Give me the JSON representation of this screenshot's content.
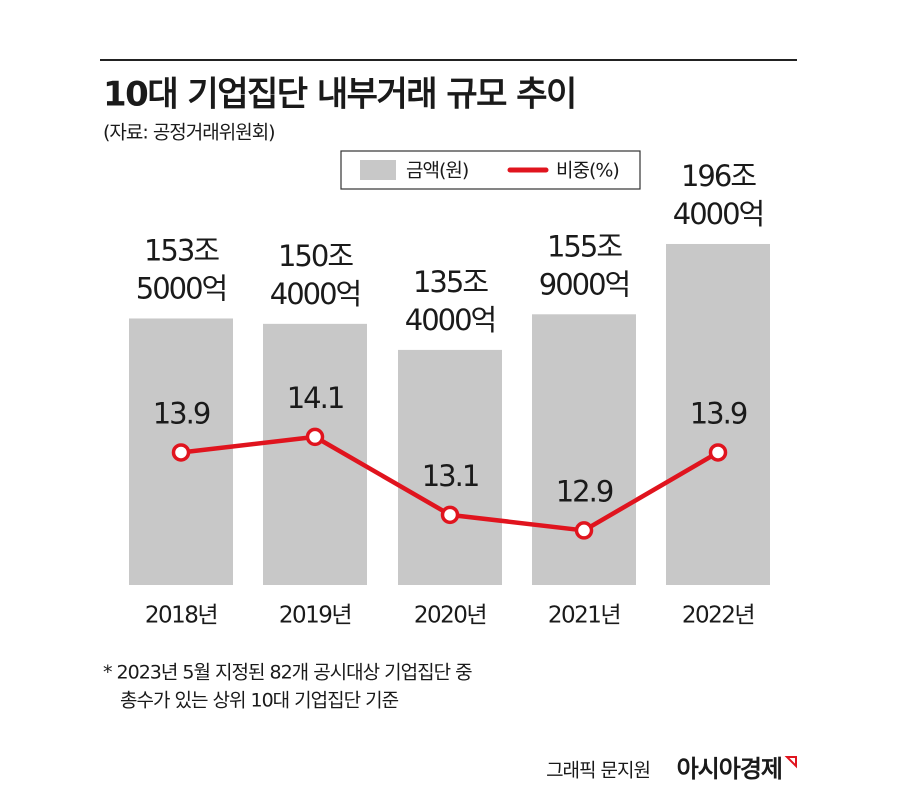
{
  "chart_data": {
    "type": "bar",
    "title": "10대 기업집단 내부거래 규모 추이",
    "subtitle": "(자료: 공정거래위원회)",
    "categories": [
      "2018년",
      "2019년",
      "2020년",
      "2021년",
      "2022년"
    ],
    "series": [
      {
        "name": "금액(원)",
        "type": "bar",
        "color": "#c8c8c8",
        "values": [
          1535000,
          1504000,
          1354000,
          1559000,
          1964000
        ],
        "value_labels": [
          "153조 5000억",
          "150조 4000억",
          "135조 4000억",
          "155조 9000억",
          "196조 4000억"
        ]
      },
      {
        "name": "비중(%)",
        "type": "line",
        "axis": "y2",
        "color": "#e0141e",
        "values": [
          13.9,
          14.1,
          13.1,
          12.9,
          13.9
        ]
      }
    ],
    "ylim": [
      0,
      2200000
    ],
    "y2lim": [
      12.2,
      17.1
    ],
    "notes": [
      "* 2023년 5월 지정된 82개 공시대상 기업집단 중",
      "총수가 있는 상위 10대 기업집단 기준"
    ],
    "credit": "그래픽 문지원",
    "brand": "아시아경제"
  }
}
